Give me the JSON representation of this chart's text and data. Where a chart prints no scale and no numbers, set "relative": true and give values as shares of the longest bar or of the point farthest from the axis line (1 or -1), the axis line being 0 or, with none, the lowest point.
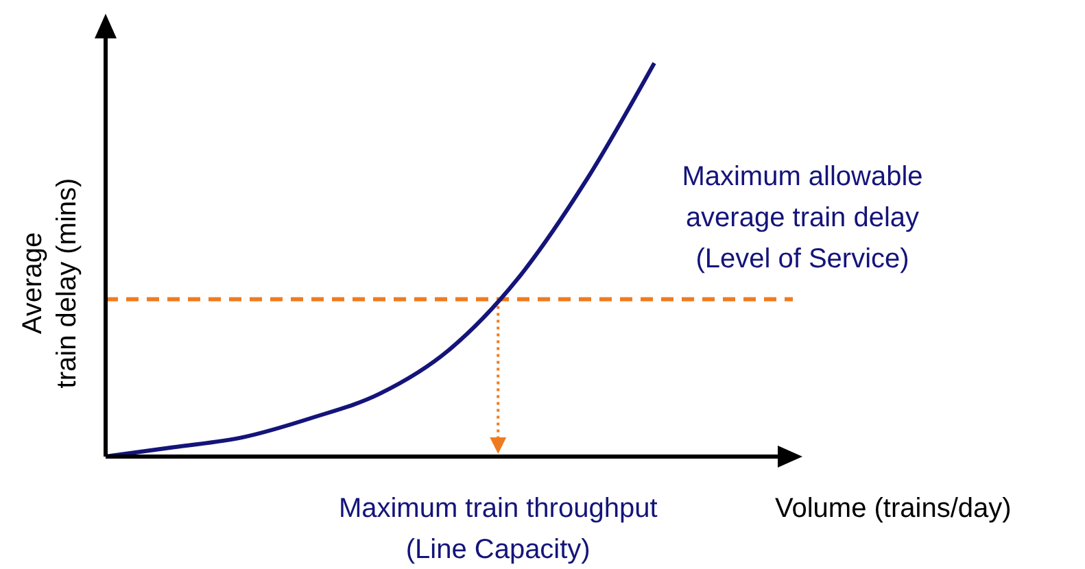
{
  "chart_data": {
    "type": "line",
    "relative": true,
    "categories": [
      null,
      null,
      null,
      null,
      null,
      null,
      null,
      null,
      null
    ],
    "series": [
      {
        "color": "#14147a",
        "values": [
          0,
          0.024,
          0.049,
          0.098,
          0.16,
          0.27,
          0.45,
          0.7,
          1
        ]
      }
    ],
    "xlabel": "Volume (trains/day)",
    "ylabel": "Average\ntrain delay (mins)",
    "ref_lines": [
      {
        "axis": "y",
        "value": 0.4,
        "label": "Maximum allowable\naverage train delay\n(Level of Service)",
        "color": "#f07b1f",
        "line_style": "dashed"
      }
    ],
    "annotations": [
      "Maximum train throughput\n(Line Capacity)"
    ]
  }
}
